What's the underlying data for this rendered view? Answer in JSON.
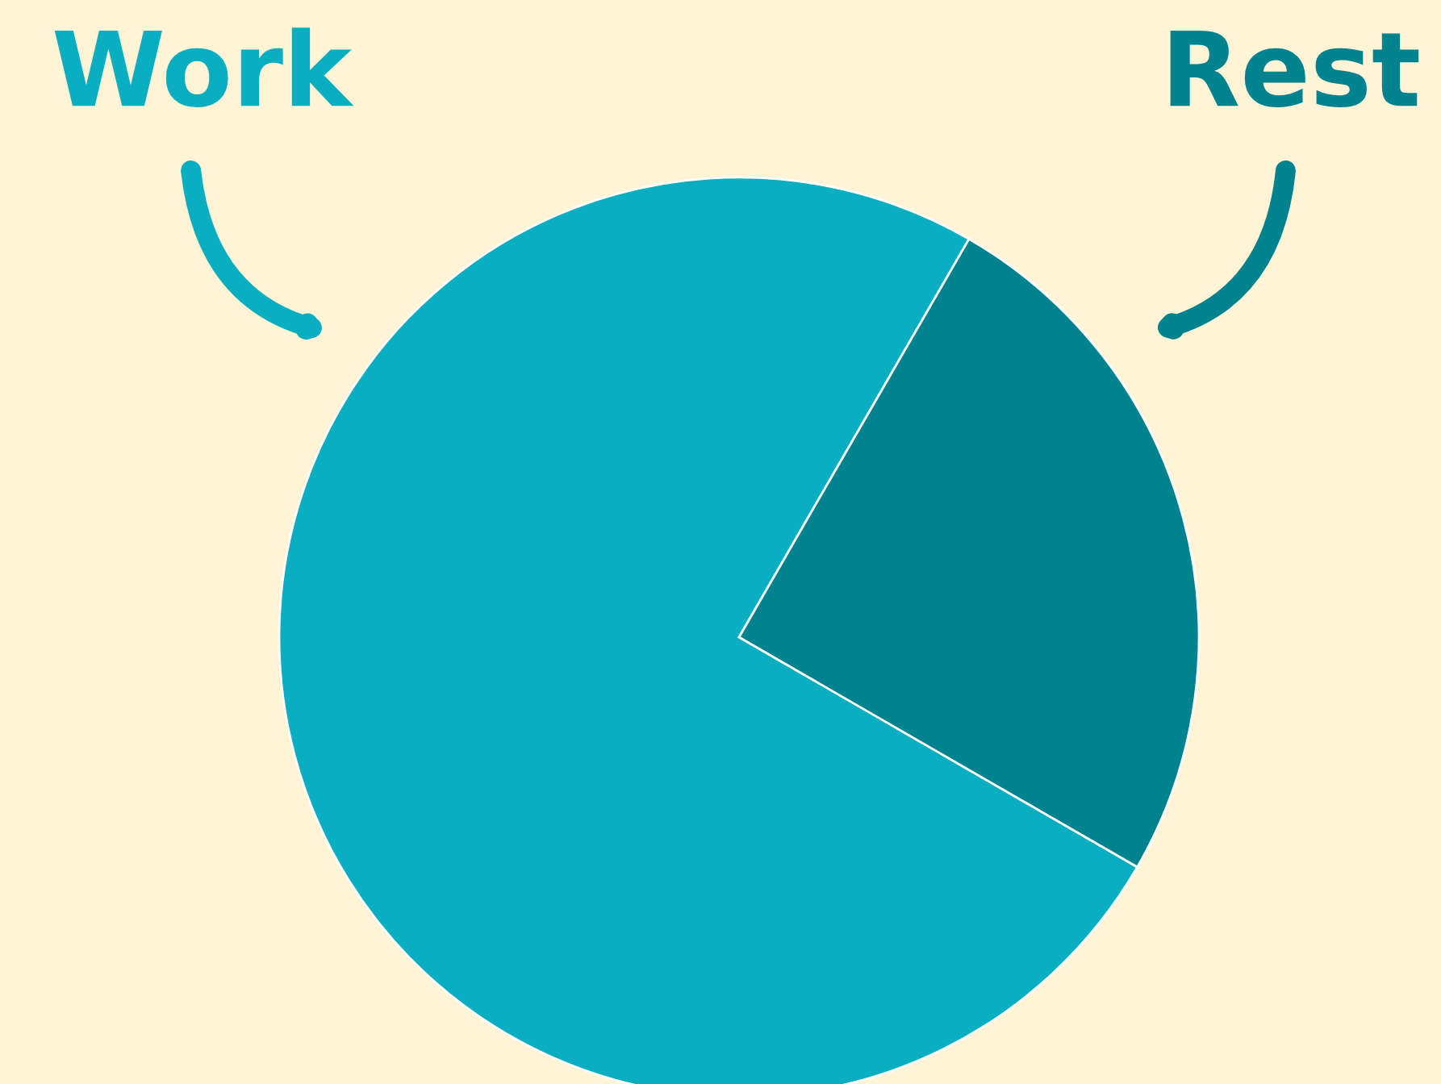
{
  "chart_data": {
    "type": "pie",
    "categories": [
      "Work",
      "Rest"
    ],
    "values": [
      75,
      25
    ],
    "colors": [
      "#0aaec1",
      "#00838f"
    ],
    "legend": false
  }
}
